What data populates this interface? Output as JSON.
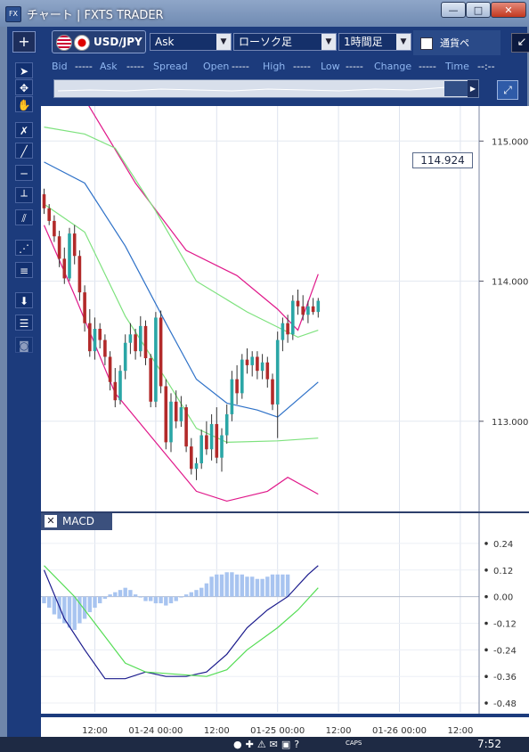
{
  "window": {
    "title": "チャート | FXTS TRADER",
    "app_icon": "FX",
    "min_label": "—",
    "max_label": "□",
    "close_label": "✕"
  },
  "toolbar": {
    "add_label": "+",
    "symbol": "USD/JPY",
    "price_type": "Ask",
    "chart_type": "ローソク足",
    "period": "1時間足",
    "currency_label": "通貨ペ",
    "popout_icon": "↙"
  },
  "quote": {
    "bid_label": "Bid",
    "bid_value": "-----",
    "ask_label": "Ask",
    "ask_value": "-----",
    "spread_label": "Spread",
    "open_label": "Open",
    "open_value": "-----",
    "high_label": "High",
    "high_value": "-----",
    "low_label": "Low",
    "low_value": "-----",
    "change_label": "Change",
    "change_value": "-----",
    "time_label": "Time",
    "time_value": "--:--"
  },
  "last_price": "114.924",
  "macd_panel": {
    "close_label": "✕",
    "title": "MACD"
  },
  "taskbar": {
    "caps": "CAPS",
    "time": "7:52"
  },
  "icons": [
    "pointer-icon",
    "crosshair-icon",
    "hand-icon",
    "cross-icon",
    "line-icon",
    "horizontal-line-icon",
    "vertical-line-icon",
    "channel-icon",
    "fibonacci-fan-icon",
    "fibonacci-retracement-icon",
    "download-icon",
    "list-icon",
    "camera-icon"
  ],
  "colors": {
    "bull": "#2aa6a6",
    "bear": "#b22a2a",
    "bb_outer": "#e0188a",
    "bb_inner": "#7ee27e",
    "ma": "#2f72c8",
    "macd": "#1a1a8c",
    "signal": "#55dd55",
    "hist": "#a8c4f0"
  },
  "chart_data": [
    {
      "type": "candlestick",
      "title": "",
      "ylim": [
        112.35,
        115.25
      ],
      "yticks": [
        113.0,
        114.0,
        115.0
      ],
      "ytick_labels": [
        "113.000",
        "114.000",
        "115.000"
      ],
      "xtick_labels": [
        "12:00",
        "01-24 00:00",
        "12:00",
        "01-25 00:00",
        "12:00",
        "01-26 00:00",
        "12:00"
      ],
      "xtick_bar_index": [
        10,
        22,
        34,
        46,
        58,
        70,
        82
      ],
      "grid": true,
      "last_price": 114.924,
      "ohlc": [
        [
          114.62,
          114.66,
          114.48,
          114.52
        ],
        [
          114.52,
          114.55,
          114.4,
          114.43
        ],
        [
          114.43,
          114.47,
          114.28,
          114.32
        ],
        [
          114.32,
          114.36,
          114.1,
          114.16
        ],
        [
          114.16,
          114.24,
          113.98,
          114.02
        ],
        [
          114.02,
          114.38,
          114.0,
          114.34
        ],
        [
          114.34,
          114.4,
          114.12,
          114.18
        ],
        [
          114.18,
          114.22,
          113.86,
          113.92
        ],
        [
          113.92,
          113.97,
          113.64,
          113.7
        ],
        [
          113.7,
          113.8,
          113.46,
          113.5
        ],
        [
          113.5,
          113.74,
          113.44,
          113.66
        ],
        [
          113.66,
          113.7,
          113.52,
          113.58
        ],
        [
          113.58,
          113.62,
          113.4,
          113.46
        ],
        [
          113.46,
          113.5,
          113.22,
          113.28
        ],
        [
          113.28,
          113.38,
          113.1,
          113.15
        ],
        [
          113.15,
          113.4,
          113.12,
          113.36
        ],
        [
          113.36,
          113.62,
          113.3,
          113.56
        ],
        [
          113.56,
          113.7,
          113.48,
          113.62
        ],
        [
          113.62,
          113.66,
          113.44,
          113.5
        ],
        [
          113.5,
          113.75,
          113.46,
          113.68
        ],
        [
          113.68,
          113.72,
          113.4,
          113.45
        ],
        [
          113.45,
          113.48,
          113.1,
          113.14
        ],
        [
          113.14,
          113.78,
          113.1,
          113.74
        ],
        [
          113.74,
          113.79,
          113.2,
          113.25
        ],
        [
          113.25,
          113.3,
          112.8,
          112.85
        ],
        [
          112.85,
          113.2,
          112.78,
          113.14
        ],
        [
          113.14,
          113.22,
          112.95,
          113.0
        ],
        [
          113.0,
          113.18,
          112.96,
          113.1
        ],
        [
          113.1,
          113.12,
          112.78,
          112.82
        ],
        [
          112.82,
          112.88,
          112.62,
          112.66
        ],
        [
          112.66,
          112.74,
          112.58,
          112.7
        ],
        [
          112.7,
          112.94,
          112.66,
          112.9
        ],
        [
          112.9,
          113.0,
          112.76,
          112.8
        ],
        [
          112.8,
          113.05,
          112.72,
          112.98
        ],
        [
          112.98,
          113.1,
          112.7,
          112.74
        ],
        [
          112.74,
          112.95,
          112.64,
          112.9
        ],
        [
          112.9,
          113.12,
          112.84,
          113.05
        ],
        [
          113.05,
          113.36,
          113.0,
          113.3
        ],
        [
          113.3,
          113.4,
          113.12,
          113.2
        ],
        [
          113.2,
          113.48,
          113.16,
          113.44
        ],
        [
          113.44,
          113.52,
          113.34,
          113.4
        ],
        [
          113.4,
          113.5,
          113.32,
          113.46
        ],
        [
          113.46,
          113.5,
          113.3,
          113.36
        ],
        [
          113.36,
          113.48,
          113.3,
          113.42
        ],
        [
          113.42,
          113.46,
          113.24,
          113.3
        ],
        [
          113.3,
          113.34,
          113.08,
          113.12
        ],
        [
          113.12,
          113.64,
          112.88,
          113.58
        ],
        [
          113.58,
          113.74,
          113.5,
          113.7
        ],
        [
          113.7,
          113.76,
          113.56,
          113.62
        ],
        [
          113.62,
          113.9,
          113.58,
          113.86
        ],
        [
          113.86,
          113.94,
          113.76,
          113.82
        ],
        [
          113.82,
          113.9,
          113.72,
          113.76
        ],
        [
          113.76,
          113.86,
          113.7,
          113.82
        ],
        [
          113.82,
          113.88,
          113.76,
          113.78
        ],
        [
          113.78,
          113.88,
          113.74,
          113.86
        ]
      ],
      "bb_upper": [
        [
          0,
          115.35
        ],
        [
          8,
          115.3
        ],
        [
          18,
          114.7
        ],
        [
          28,
          114.22
        ],
        [
          38,
          114.04
        ],
        [
          46,
          113.8
        ],
        [
          50,
          113.65
        ],
        [
          54,
          114.05
        ]
      ],
      "bb_upper_inner": [
        [
          0,
          115.1
        ],
        [
          8,
          115.05
        ],
        [
          14,
          114.95
        ],
        [
          22,
          114.5
        ],
        [
          30,
          114.0
        ],
        [
          40,
          113.78
        ],
        [
          50,
          113.6
        ],
        [
          54,
          113.65
        ]
      ],
      "bb_lower_inner": [
        [
          0,
          114.55
        ],
        [
          8,
          114.35
        ],
        [
          16,
          113.75
        ],
        [
          24,
          113.3
        ],
        [
          30,
          112.95
        ],
        [
          36,
          112.85
        ],
        [
          46,
          112.86
        ],
        [
          54,
          112.88
        ]
      ],
      "bb_lower": [
        [
          0,
          114.4
        ],
        [
          6,
          113.9
        ],
        [
          14,
          113.2
        ],
        [
          22,
          112.85
        ],
        [
          30,
          112.5
        ],
        [
          36,
          112.43
        ],
        [
          44,
          112.5
        ],
        [
          48,
          112.6
        ],
        [
          54,
          112.48
        ]
      ],
      "ma": [
        [
          0,
          114.85
        ],
        [
          8,
          114.7
        ],
        [
          16,
          114.25
        ],
        [
          24,
          113.7
        ],
        [
          30,
          113.3
        ],
        [
          36,
          113.13
        ],
        [
          42,
          113.08
        ],
        [
          46,
          113.03
        ],
        [
          54,
          113.28
        ]
      ]
    },
    {
      "type": "line",
      "title": "MACD",
      "ylim": [
        -0.52,
        0.3
      ],
      "yticks": [
        0.24,
        0.12,
        0.0,
        -0.12,
        -0.24,
        -0.36,
        -0.48
      ],
      "ytick_labels": [
        "0.24",
        "0.12",
        "0.00",
        "-0.12",
        "-0.24",
        "-0.36",
        "-0.48"
      ],
      "series": [
        {
          "values": [
            [
              0,
              0.12
            ],
            [
              4,
              -0.1
            ],
            [
              8,
              -0.24
            ],
            [
              12,
              -0.37
            ],
            [
              16,
              -0.37
            ],
            [
              20,
              -0.34
            ],
            [
              24,
              -0.36
            ],
            [
              28,
              -0.36
            ],
            [
              32,
              -0.34
            ],
            [
              36,
              -0.26
            ],
            [
              40,
              -0.14
            ],
            [
              44,
              -0.06
            ],
            [
              48,
              0.0
            ],
            [
              52,
              0.1
            ],
            [
              54,
              0.14
            ]
          ]
        },
        {
          "values": [
            [
              0,
              0.14
            ],
            [
              6,
              0.0
            ],
            [
              12,
              -0.18
            ],
            [
              16,
              -0.3
            ],
            [
              20,
              -0.34
            ],
            [
              26,
              -0.35
            ],
            [
              32,
              -0.36
            ],
            [
              36,
              -0.33
            ],
            [
              40,
              -0.24
            ],
            [
              46,
              -0.14
            ],
            [
              50,
              -0.06
            ],
            [
              54,
              0.04
            ]
          ]
        }
      ],
      "histogram": [
        -0.03,
        -0.05,
        -0.08,
        -0.1,
        -0.12,
        -0.14,
        -0.15,
        -0.12,
        -0.1,
        -0.07,
        -0.05,
        -0.03,
        -0.01,
        0.01,
        0.02,
        0.03,
        0.04,
        0.03,
        0.01,
        0.0,
        -0.02,
        -0.02,
        -0.03,
        -0.03,
        -0.04,
        -0.03,
        -0.02,
        0.0,
        0.01,
        0.02,
        0.03,
        0.04,
        0.06,
        0.09,
        0.1,
        0.1,
        0.11,
        0.11,
        0.1,
        0.1,
        0.09,
        0.09,
        0.08,
        0.08,
        0.09,
        0.1,
        0.1,
        0.1,
        0.1
      ]
    }
  ]
}
